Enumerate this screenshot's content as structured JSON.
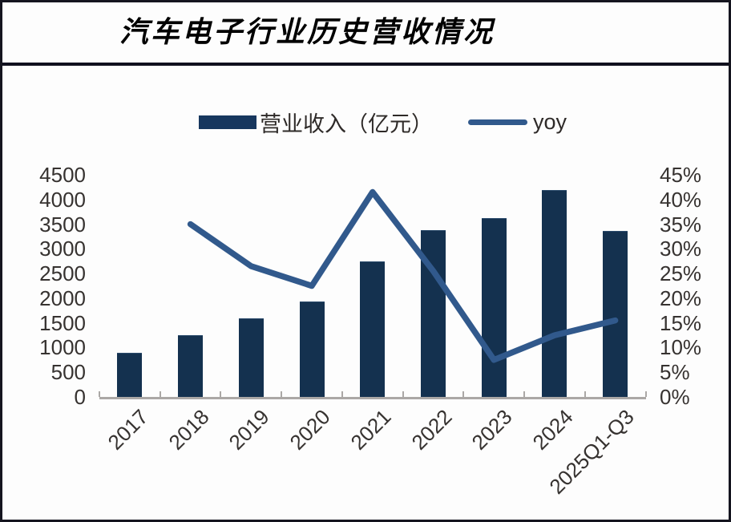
{
  "window": {
    "title": "汽车电子行业历史营收情况"
  },
  "legend": {
    "bar_label": "营业收入（亿元）",
    "line_label": "yoy"
  },
  "colors": {
    "bar": "#14314F",
    "line": "#31598C",
    "axis": "#ABA8A6",
    "tick_text": "#363230",
    "title_text": "#000000",
    "divider": "#10101E",
    "frame_border": "#15151F",
    "background": "#FDFDFD"
  },
  "chart_data": {
    "type": "combo bar+line",
    "title": "汽车电子行业历史营收情况",
    "categories": [
      "2017",
      "2018",
      "2019",
      "2020",
      "2021",
      "2022",
      "2023",
      "2024",
      "2025Q1-Q3"
    ],
    "series": [
      {
        "name": "营业收入（亿元）",
        "type": "bar",
        "axis": "left",
        "values": [
          900,
          1250,
          1590,
          1935,
          2745,
          3375,
          3630,
          4185,
          3365
        ]
      },
      {
        "name": "yoy",
        "type": "line",
        "axis": "right",
        "unit": "%",
        "values": [
          null,
          35,
          26.5,
          22.5,
          41.5,
          25.5,
          7.5,
          12.5,
          15.5
        ]
      }
    ],
    "left_axis": {
      "min": 0,
      "max": 4500,
      "step": 500,
      "tick_labels": [
        "0",
        "500",
        "1000",
        "1500",
        "2000",
        "2500",
        "3000",
        "3500",
        "4000",
        "4500"
      ]
    },
    "right_axis": {
      "min": 0,
      "max": 45,
      "step": 5,
      "tick_labels": [
        "0%",
        "5%",
        "10%",
        "15%",
        "20%",
        "25%",
        "30%",
        "35%",
        "40%",
        "45%"
      ]
    },
    "legend_position": "top-center",
    "grid": false,
    "x_label_rotation_deg": 45
  }
}
